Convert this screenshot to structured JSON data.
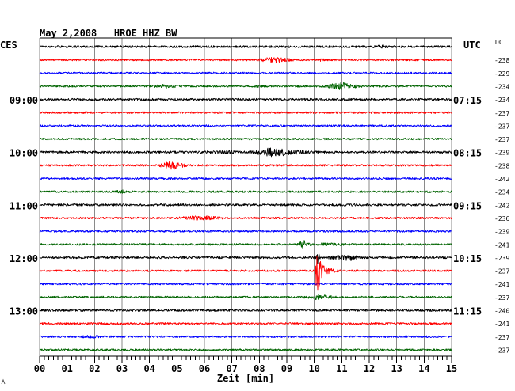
{
  "chart_data": {
    "type": "line",
    "title": "May 2,2008   HROE HHZ BW",
    "left_header": "CES",
    "right_header": "UTC",
    "dc_header": "DC",
    "xlabel": "Zeit [min]",
    "xlim": [
      0,
      15
    ],
    "x_ticks": [
      "00",
      "01",
      "02",
      "03",
      "04",
      "05",
      "06",
      "07",
      "08",
      "09",
      "10",
      "11",
      "12",
      "13",
      "14",
      "15"
    ],
    "x_minor_tick_seconds": 10,
    "grid": true,
    "rows": [
      {
        "color": "#000000",
        "noise_level": 1.15,
        "bursts": [
          {
            "start": 12.1,
            "peak": 12.5,
            "end": 13.1,
            "amp": 0.8
          }
        ]
      },
      {
        "color": "#ff0000",
        "dc": -238,
        "noise_level": 1.0,
        "bursts": [
          {
            "start": 7.9,
            "peak": 8.6,
            "end": 9.5,
            "amp": 2.6
          },
          {
            "start": 10.0,
            "peak": 10.15,
            "end": 10.6,
            "amp": 0.8
          }
        ]
      },
      {
        "color": "#0000ff",
        "dc": -229,
        "noise_level": 1.0,
        "bursts": []
      },
      {
        "color": "#006400",
        "dc": -234,
        "noise_level": 1.0,
        "bursts": [
          {
            "start": 4.0,
            "peak": 4.6,
            "end": 5.3,
            "amp": 1.4
          },
          {
            "start": 7.8,
            "peak": 8.1,
            "end": 8.5,
            "amp": 0.6
          },
          {
            "start": 10.3,
            "peak": 11.0,
            "end": 12.0,
            "amp": 3.4
          }
        ]
      },
      {
        "color": "#000000",
        "dc": -234,
        "local_time": "09:00",
        "utc_time": "07:15",
        "noise_level": 1.15,
        "bursts": []
      },
      {
        "color": "#ff0000",
        "dc": -237,
        "noise_level": 1.0,
        "bursts": []
      },
      {
        "color": "#0000ff",
        "dc": -237,
        "noise_level": 1.0,
        "bursts": []
      },
      {
        "color": "#006400",
        "dc": -237,
        "noise_level": 1.0,
        "bursts": []
      },
      {
        "color": "#000000",
        "dc": -239,
        "local_time": "10:00",
        "utc_time": "08:15",
        "noise_level": 1.15,
        "bursts": [
          {
            "start": 5.8,
            "peak": 7.0,
            "end": 7.6,
            "amp": 0.7
          },
          {
            "start": 7.6,
            "peak": 8.5,
            "end": 10.6,
            "amp": 4.0
          }
        ]
      },
      {
        "color": "#ff0000",
        "dc": -238,
        "noise_level": 1.0,
        "bursts": [
          {
            "start": 4.3,
            "peak": 4.85,
            "end": 5.6,
            "amp": 4.0
          }
        ]
      },
      {
        "color": "#0000ff",
        "dc": -242,
        "noise_level": 1.0,
        "bursts": []
      },
      {
        "color": "#006400",
        "dc": -234,
        "noise_level": 1.0,
        "bursts": [
          {
            "start": 2.7,
            "peak": 3.0,
            "end": 3.4,
            "amp": 1.1
          }
        ]
      },
      {
        "color": "#000000",
        "dc": -242,
        "local_time": "11:00",
        "utc_time": "09:15",
        "noise_level": 1.15,
        "bursts": []
      },
      {
        "color": "#ff0000",
        "dc": -236,
        "noise_level": 1.0,
        "bursts": [
          {
            "start": 4.9,
            "peak": 6.0,
            "end": 7.0,
            "amp": 1.9
          }
        ]
      },
      {
        "color": "#0000ff",
        "dc": -239,
        "noise_level": 1.0,
        "bursts": []
      },
      {
        "color": "#006400",
        "dc": -241,
        "noise_level": 1.0,
        "bursts": [
          {
            "start": 9.35,
            "peak": 9.65,
            "end": 10.0,
            "amp": 4.0
          },
          {
            "start": 10.0,
            "peak": 10.3,
            "end": 12.0,
            "amp": 0.8
          }
        ]
      },
      {
        "color": "#000000",
        "dc": -239,
        "local_time": "12:00",
        "utc_time": "10:15",
        "noise_level": 1.15,
        "bursts": [
          {
            "start": 10.05,
            "peak": 10.12,
            "end": 10.3,
            "amp": 6.0
          },
          {
            "start": 10.4,
            "peak": 11.3,
            "end": 12.2,
            "amp": 2.6
          }
        ]
      },
      {
        "color": "#ff0000",
        "dc": -237,
        "noise_level": 1.0,
        "bursts": [
          {
            "start": 10.03,
            "peak": 10.1,
            "end": 10.32,
            "amp": 28
          },
          {
            "start": 10.1,
            "peak": 10.2,
            "end": 11.1,
            "amp": 6.0
          }
        ]
      },
      {
        "color": "#0000ff",
        "dc": -241,
        "noise_level": 1.0,
        "bursts": []
      },
      {
        "color": "#006400",
        "dc": -237,
        "noise_level": 1.0,
        "bursts": [
          {
            "start": 9.5,
            "peak": 10.2,
            "end": 11.1,
            "amp": 2.2
          }
        ]
      },
      {
        "color": "#000000",
        "dc": -240,
        "local_time": "13:00",
        "utc_time": "11:15",
        "noise_level": 1.15,
        "bursts": []
      },
      {
        "color": "#ff0000",
        "dc": -241,
        "noise_level": 1.0,
        "bursts": []
      },
      {
        "color": "#0000ff",
        "dc": -237,
        "noise_level": 1.0,
        "bursts": [
          {
            "start": 1.4,
            "peak": 1.9,
            "end": 2.4,
            "amp": 1.1
          }
        ]
      },
      {
        "color": "#006400",
        "dc": -237,
        "noise_level": 1.0,
        "bursts": []
      }
    ]
  }
}
